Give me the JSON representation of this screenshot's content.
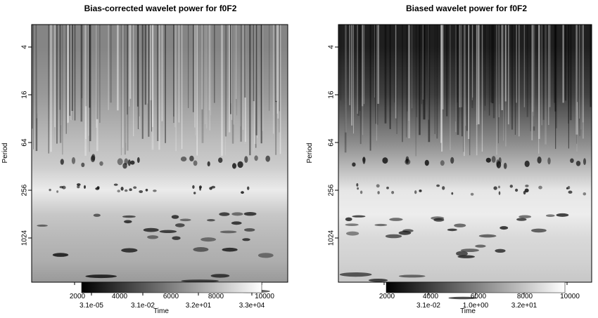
{
  "chart_data": [
    {
      "type": "heatmap",
      "title": "Bias-corrected wavelet power for f0F2",
      "xlabel": "Time",
      "ylabel": "Period",
      "x_ticks": [
        "2000",
        "4000",
        "6000",
        "8000",
        "10000"
      ],
      "y_ticks": [
        "4",
        "16",
        "64",
        "256",
        "1024"
      ],
      "y_scale": "log2",
      "colorbar_labels": [
        "3.1e-05",
        "3.1e-02",
        "3.2e+01",
        "3.3e+04"
      ],
      "colormap": [
        "#000000",
        "#ffffff"
      ],
      "bands": [
        {
          "period": 4,
          "power": 0.52
        },
        {
          "period": 16,
          "power": 0.6
        },
        {
          "period": 64,
          "power": 0.74
        },
        {
          "period": 128,
          "power": 0.8
        },
        {
          "period": 256,
          "power": 0.92
        },
        {
          "period": 512,
          "power": 0.78
        },
        {
          "period": 1024,
          "power": 0.72
        },
        {
          "period": 2048,
          "power": 0.68
        },
        {
          "period": 4096,
          "power": 0.6
        }
      ]
    },
    {
      "type": "heatmap",
      "title": "Biased wavelet power for f0F2",
      "xlabel": "Time",
      "ylabel": "Period",
      "x_ticks": [
        "2000",
        "4000",
        "6000",
        "8000",
        "10000"
      ],
      "y_ticks": [
        "4",
        "16",
        "64",
        "256",
        "1024"
      ],
      "y_scale": "log2",
      "colorbar_labels": [
        "3.1e-02",
        "1.0e+00",
        "3.2e+01"
      ],
      "colormap": [
        "#000000",
        "#ffffff"
      ],
      "bands": [
        {
          "period": 4,
          "power": 0.12
        },
        {
          "period": 16,
          "power": 0.25
        },
        {
          "period": 64,
          "power": 0.55
        },
        {
          "period": 128,
          "power": 0.72
        },
        {
          "period": 256,
          "power": 0.9
        },
        {
          "period": 512,
          "power": 0.93
        },
        {
          "period": 1024,
          "power": 0.85
        },
        {
          "period": 2048,
          "power": 0.82
        },
        {
          "period": 4096,
          "power": 0.78
        }
      ]
    }
  ]
}
